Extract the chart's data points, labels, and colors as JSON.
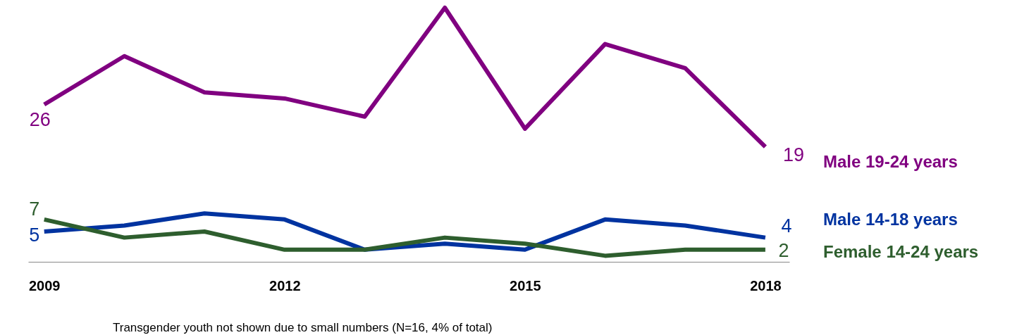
{
  "chart_data": {
    "type": "line",
    "x": [
      2009,
      2010,
      2011,
      2012,
      2013,
      2014,
      2015,
      2016,
      2017,
      2018
    ],
    "xlim": [
      2008.8,
      2018.3
    ],
    "xticks": [
      2009,
      2012,
      2015,
      2018
    ],
    "series": [
      {
        "name": "Male 19-24 years",
        "color": "#800080",
        "values": [
          26,
          34,
          28,
          27,
          24,
          42,
          22,
          36,
          32,
          19
        ],
        "value_labels": [
          "26",
          null,
          null,
          null,
          null,
          null,
          null,
          null,
          null,
          "19"
        ]
      },
      {
        "name": "Male 14-18 years",
        "color": "#0033a0",
        "values": [
          5,
          6,
          8,
          7,
          2,
          3,
          2,
          7,
          6,
          4
        ],
        "value_labels": [
          "5",
          null,
          null,
          null,
          null,
          null,
          null,
          null,
          null,
          "4"
        ]
      },
      {
        "name": "Female 14-24 years",
        "color": "#2e5e2e",
        "values": [
          7,
          4,
          5,
          2,
          2,
          4,
          3,
          1,
          2,
          2
        ],
        "value_labels": [
          "7",
          null,
          null,
          null,
          null,
          null,
          null,
          null,
          null,
          "2"
        ]
      }
    ],
    "annotations": [
      "Transgender youth not shown due to small numbers (N=16, 4% of total)"
    ]
  }
}
